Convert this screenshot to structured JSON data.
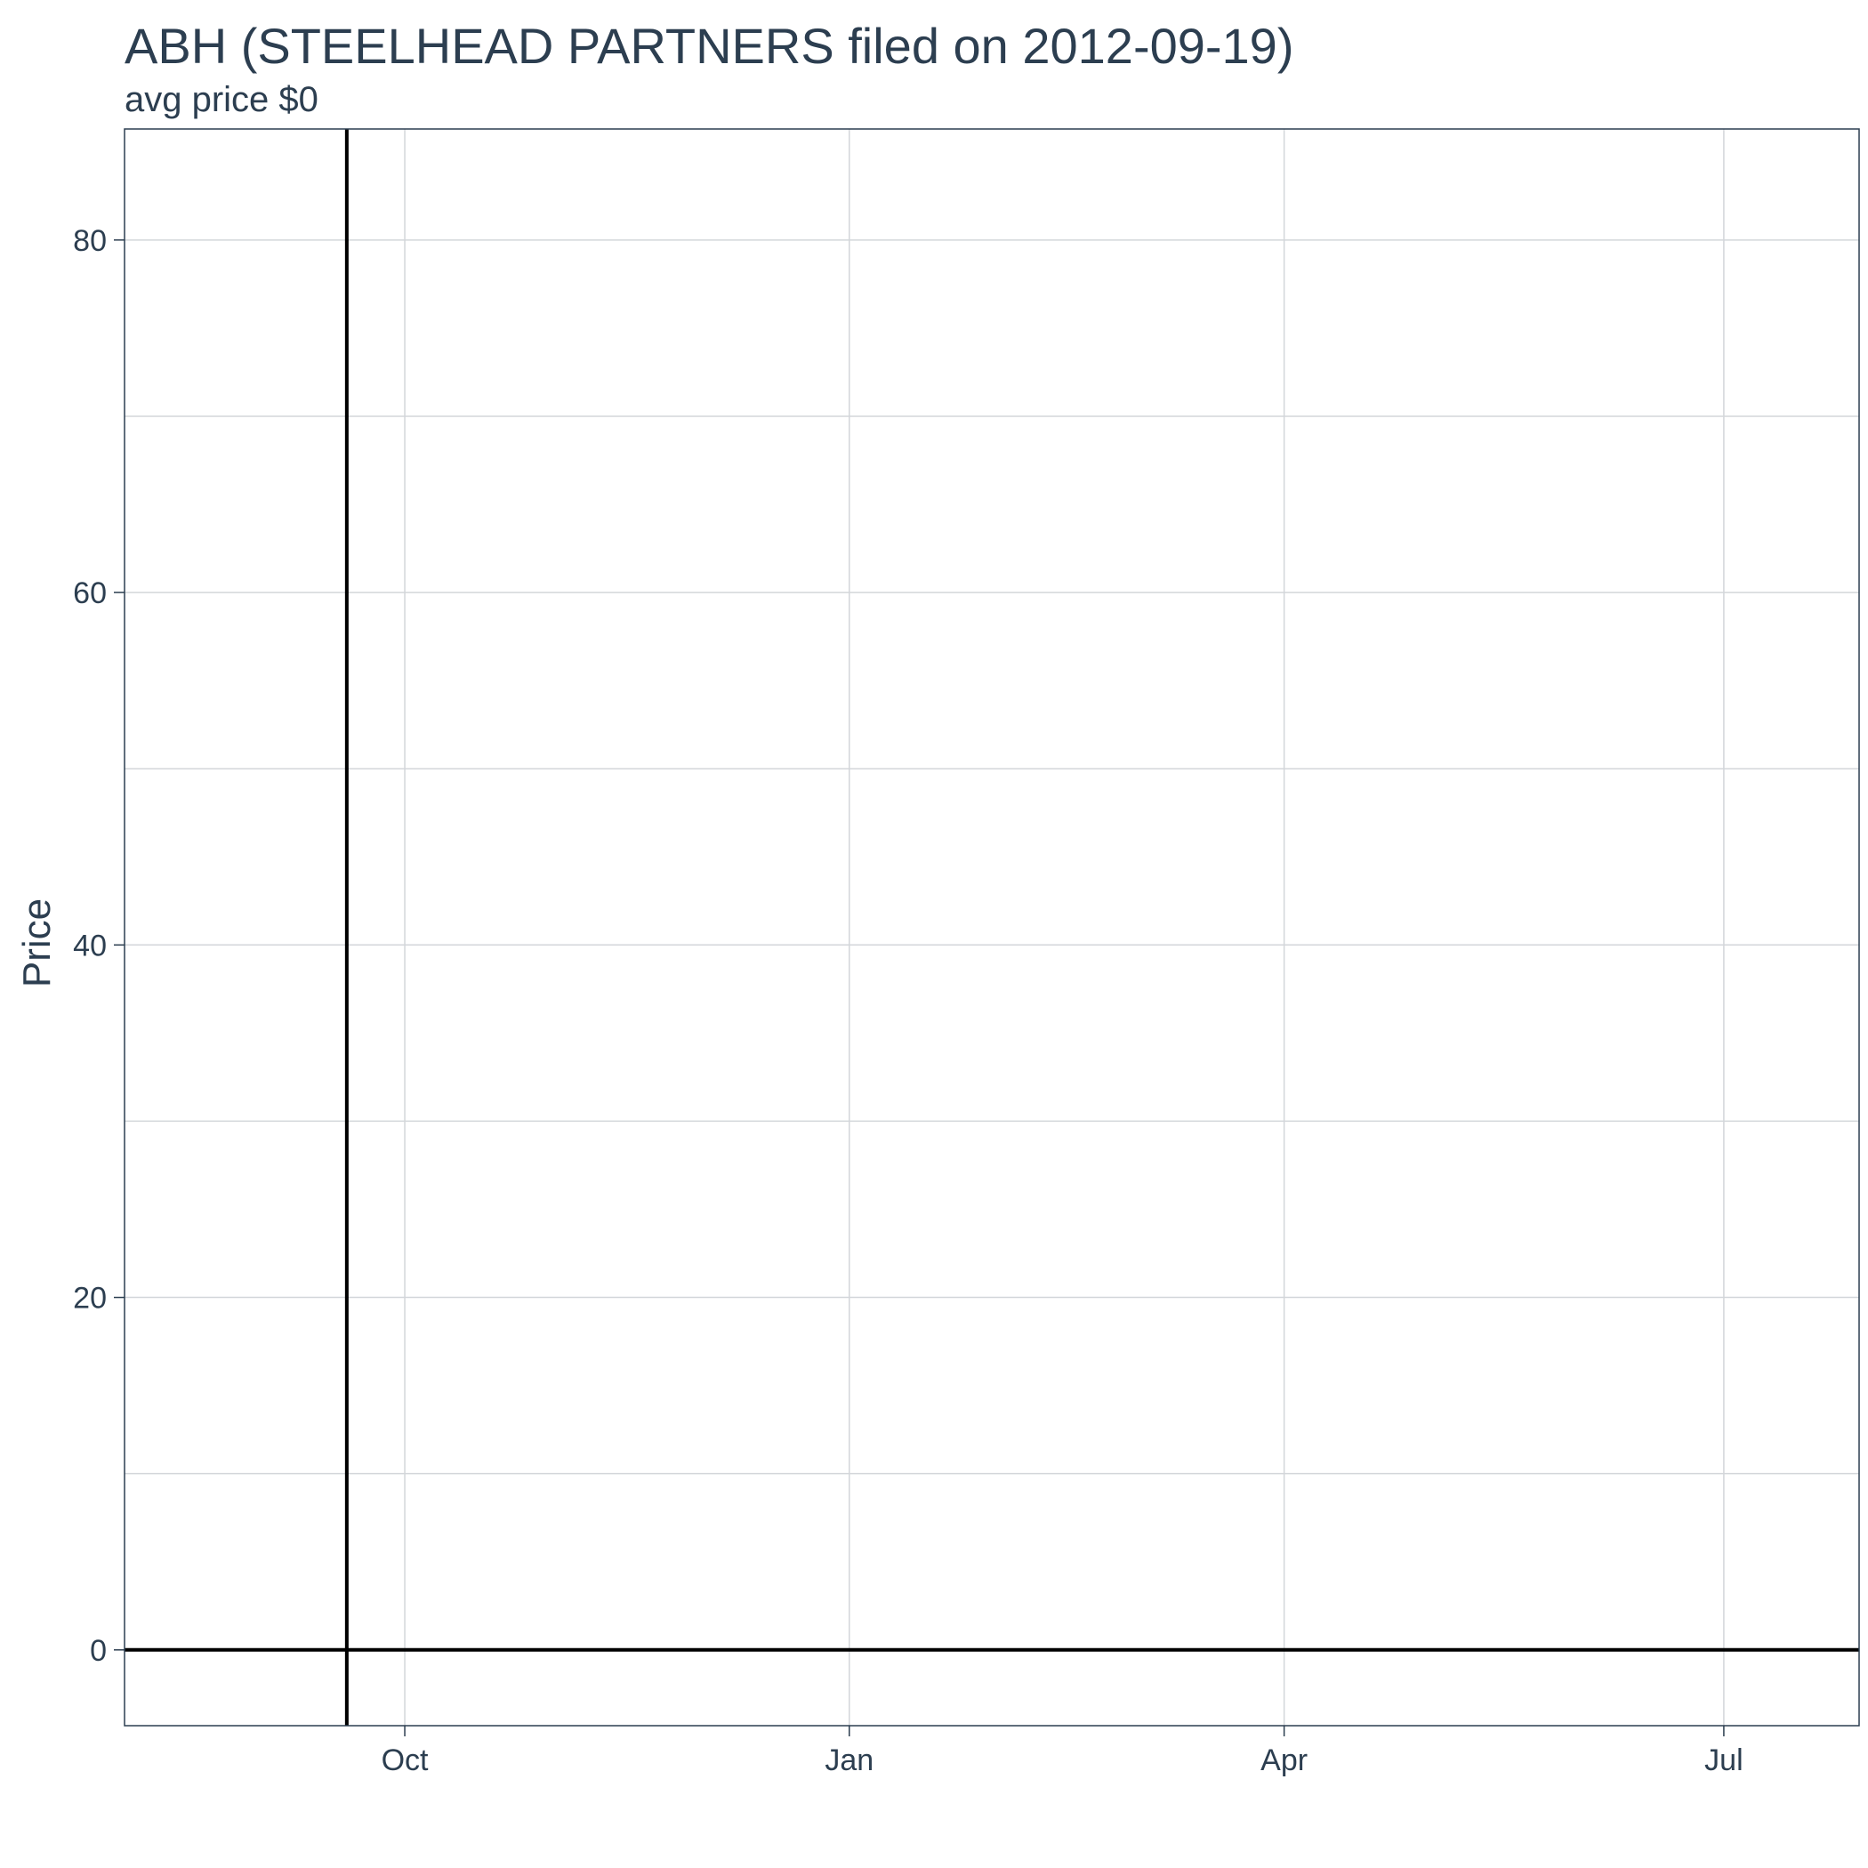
{
  "chart_data": {
    "type": "line",
    "title": "ABH (STEELHEAD PARTNERS filed on 2012-09-19)",
    "subtitle": "avg price $0",
    "xlabel": "",
    "ylabel": "Price",
    "x_ticks": [
      {
        "label": "Oct",
        "date": "2012-10-01"
      },
      {
        "label": "Jan",
        "date": "2013-01-01"
      },
      {
        "label": "Apr",
        "date": "2013-04-01"
      },
      {
        "label": "Jul",
        "date": "2013-07-01"
      }
    ],
    "y_ticks": [
      0,
      20,
      40,
      60,
      80
    ],
    "xlim": [
      "2012-08-04",
      "2013-07-29"
    ],
    "ylim": [
      -4.3,
      86.3
    ],
    "grid": true,
    "series": [
      {
        "x": [
          "2012-08-04",
          "2013-07-29"
        ],
        "values": [
          0,
          0
        ],
        "color": "#000000"
      }
    ],
    "filing_date": "2012-09-19",
    "reference_line_color": "#000000"
  }
}
